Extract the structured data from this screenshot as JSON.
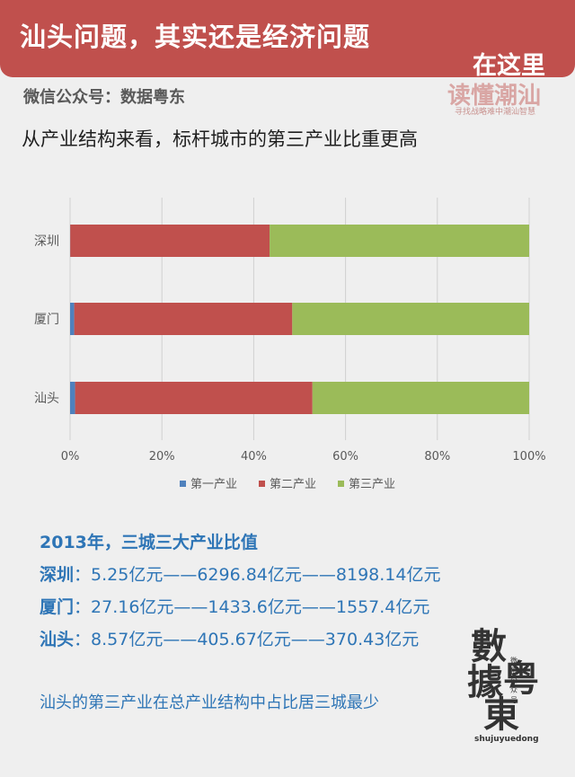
{
  "header": {
    "title": "汕头问题，其实还是经济问题",
    "brand_line1": "在这里",
    "brand_line2": "读懂潮汕",
    "brand_tagline": "寻找战略难中潮汕智慧"
  },
  "account": "微信公众号：数据粤东",
  "subtitle": "从产业结构来看，标杆城市的第三产业比重更高",
  "colors": {
    "primary": "#4f81bd",
    "secondary": "#c0504d",
    "tertiary": "#9bbb59",
    "accent": "#2e75b6"
  },
  "chart_data": {
    "type": "bar",
    "orientation": "horizontal",
    "stacked": "percent",
    "categories": [
      "深圳",
      "厦门",
      "汕头"
    ],
    "series": [
      {
        "name": "第一产业",
        "values": [
          5.25,
          27.16,
          8.57
        ]
      },
      {
        "name": "第二产业",
        "values": [
          6296.84,
          1433.6,
          405.67
        ]
      },
      {
        "name": "第三产业",
        "values": [
          8198.14,
          1557.4,
          370.43
        ]
      }
    ],
    "x_ticks": [
      "0%",
      "20%",
      "40%",
      "60%",
      "80%",
      "100%"
    ],
    "xlim": [
      0,
      100
    ],
    "grid": true,
    "legend": "bottom"
  },
  "stats": {
    "title": "2013年，三城三大产业比值",
    "rows": [
      {
        "city": "深圳",
        "values": "：5.25亿元——6296.84亿元——8198.14亿元"
      },
      {
        "city": "厦门",
        "values": "：27.16亿元——1433.6亿元——1557.4亿元"
      },
      {
        "city": "汕头",
        "values": "：8.57亿元——405.67亿元——370.43亿元"
      }
    ],
    "conclusion": "汕头的第三产业在总产业结构中占比居三城最少"
  },
  "logo": {
    "chars": [
      "數",
      "據",
      "粤",
      "東"
    ],
    "small_label": "微信公众号",
    "url": "shujuyuedong"
  }
}
